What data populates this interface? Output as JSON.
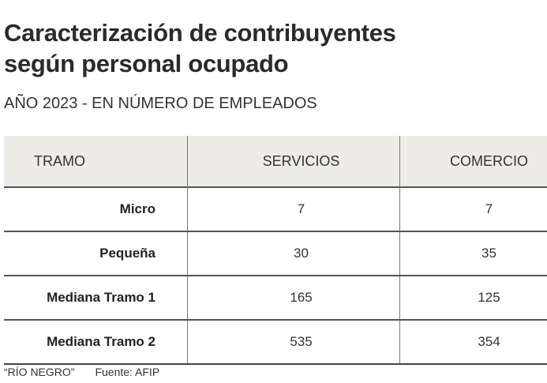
{
  "title_line1": "Caracterización de contribuyentes",
  "title_line2": "según personal ocupado",
  "subtitle": "AÑO 2023 - EN NÚMERO DE EMPLEADOS",
  "table": {
    "headers": [
      "TRAMO",
      "SERVICIOS",
      "COMERCIO"
    ],
    "rows": [
      [
        "Micro",
        "7",
        "7"
      ],
      [
        "Pequeña",
        "30",
        "35"
      ],
      [
        "Mediana Tramo 1",
        "165",
        "125"
      ],
      [
        "Mediana Tramo 2",
        "535",
        "354"
      ]
    ]
  },
  "footer": {
    "credit": "“RÍO NEGRO”",
    "source": "Fuente: AFIP"
  }
}
